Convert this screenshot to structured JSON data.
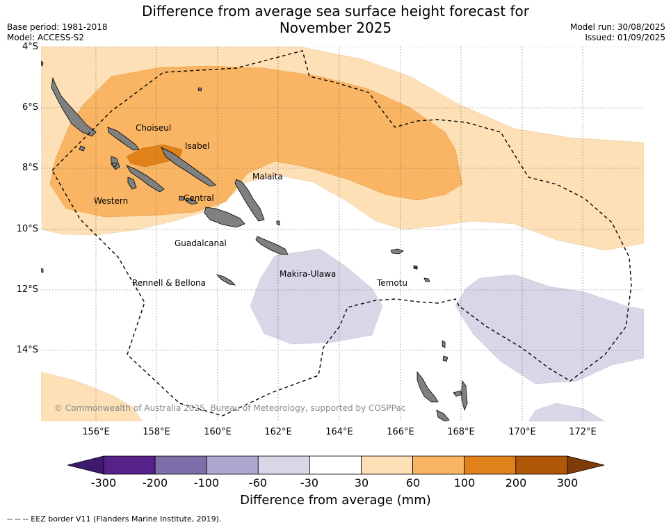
{
  "title": {
    "line1": "Difference from average sea surface height forecast for",
    "line2": "November 2025"
  },
  "meta": {
    "base_period": "Base period: 1981-2018",
    "model": "Model: ACCESS-S2",
    "model_run": "Model run: 30/08/2025",
    "issued": "Issued: 01/09/2025"
  },
  "axes": {
    "y_ticks": [
      "4°S",
      "6°S",
      "8°S",
      "10°S",
      "12°S",
      "14°S"
    ],
    "x_ticks": [
      "156°E",
      "158°E",
      "160°E",
      "162°E",
      "164°E",
      "166°E",
      "168°E",
      "170°E",
      "172°E"
    ]
  },
  "regions": {
    "choiseul": "Choiseul",
    "isabel": "Isabel",
    "malaita": "Malaita",
    "western": "Western",
    "central": "Central",
    "guadalcanal": "Guadalcanal",
    "makira": "Makira-Ulawa",
    "rennell": "Rennell & Bellona",
    "temotu": "Temotu"
  },
  "copyright": "© Commonwealth of Australia 2025, Bureau of Meteorology, supported by COSPPac",
  "colorbar": {
    "labels": [
      "-300",
      "-200",
      "-100",
      "-60",
      "-30",
      "30",
      "60",
      "100",
      "200",
      "300"
    ],
    "colors": [
      "#3d1a6e",
      "#55228a",
      "#7d6faa",
      "#aea7d0",
      "#d7d7e8",
      "#ffffff",
      "#fde0b6",
      "#f9b563",
      "#e0811a",
      "#b15708",
      "#7f3b08"
    ],
    "title": "Difference from average (mm)"
  },
  "footnote": "--  --  -- EEZ border V11 (Flanders Marine Institute, 2019).",
  "legend_colors": {
    "land": "#808080",
    "positive_30_60": "#fde0b6",
    "positive_60_100": "#f9b563",
    "positive_100_200": "#e0811a",
    "negative_30_60": "#d7d7e8"
  }
}
